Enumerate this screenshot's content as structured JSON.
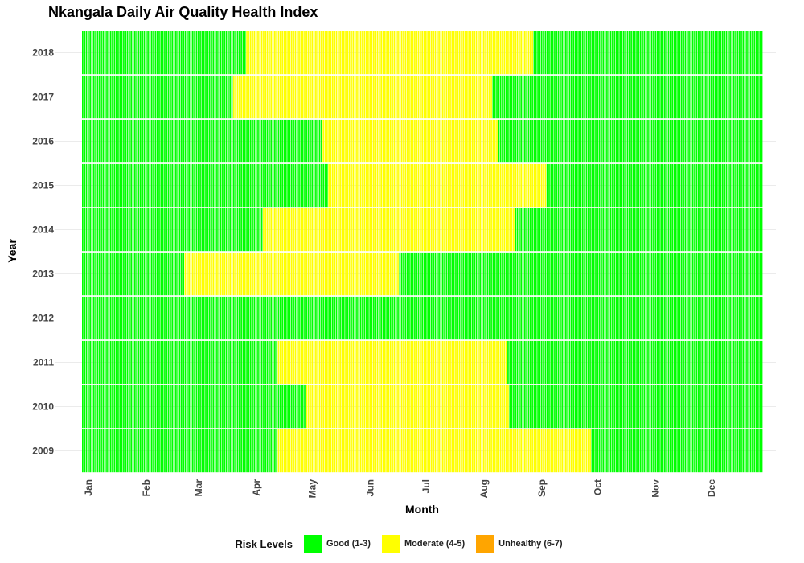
{
  "chart_data": {
    "type": "heatmap",
    "title": "Nkangala Daily Air Quality Health Index",
    "xlabel": "Month",
    "ylabel": "Year",
    "x_ticks": [
      "Jan",
      "Feb",
      "Mar",
      "Apr",
      "May",
      "Jun",
      "Jul",
      "Aug",
      "Sep",
      "Oct",
      "Nov",
      "Dec"
    ],
    "years": [
      2009,
      2010,
      2011,
      2012,
      2013,
      2014,
      2015,
      2016,
      2017,
      2018
    ],
    "day_range": [
      1,
      365
    ],
    "categories": [
      {
        "key": "good",
        "label": "Good (1-3)",
        "color": "#00ff00"
      },
      {
        "key": "moderate",
        "label": "Moderate (4-5)",
        "color": "#ffff00"
      },
      {
        "key": "unhealthy",
        "label": "Unhealthy (6-7)",
        "color": "#ffa500"
      }
    ],
    "legend_title": "Risk Levels",
    "legend_position": "bottom",
    "grid": true,
    "daily_levels": {
      "2018": "GGGGGGGGGGGGGGGGGGGGGGGGGGGGGGGGGGGGGGGGGGGGGGGGGGGGGGGGGGGGGGGGGGGGGGGGGGGGGGGGGGGGGGGGMMMMMMMMMMMMMMMMMMMMMMMMMMMMMMMMMMMMMMMMMMMMMMMMMMMMMMMMMMMMMMMMMMMMMMMMMMMMMMMMMMMMMMMMMMMMMMMMMMMMMMMMMMMMMMMMMMMMMMMMMMMMMMMMMMMMMMMMMMMMMMMMMMMMMMMMMMGGGGGGGGGGGGGGGGGGGGGGGGGGGGGGGGGGGGGGGGGGGGGGGGGGGGGGGGGGGGGGGGGGGGGGGGGGGGGGGGGGGGGGGGGGGGGGGGGGGGGGGGGGGGG",
      "2017": "GGGGGGGGGGGGGGGGGGGGGGGGGGGGGGGGGGGGGGGGGGGGGGGGGGGGGGGGGGGGGGGGGGGGGGGGGGGGGGGGGMMMMMMMMMMMMMMMMMMMMMMMMMMMMMMMMMMMMMMMMMMMMMMMMMMMMMMMMMMMMMMMMMMMMMMMMMMMMMMMMMMMMMMMMMMMMMMMMMMMMMMMMMMMMMMMMMMMMMMMMMMMMMMMMMMMMMMMMMMMGGGGGGGGGGGGGGGGGGGGGGGGGGGGGGGGGGGGGGGGGGGGGGGGGGGGGGGGGGGGGGGGGGGGGGGGGGGGGGGGGGGGGGGGGGGGGGGGGGGGGGGGGGGGGGGGGGGGGGGGGGGGGGG",
      "2016": "GGGGGGGGGGGGGGGGGGGGGGGGGGGGGGGGGGGGGGGGGGGGGGGGGGGGGGGGGGGGGGGGGGGGGGGGGGGGGGGGGGGGGGGGGGGGGGGGGGGGGGGGGGGGGGGGGGGGGGGGGGGGGGGGGMMMMMMMMMMMMMMMMMMMMMMMMMMMMMMMMMMMMMMMMMMMMMMMMMMMMMMMMMMMMMMMMMMMMMMMMMMMMMMMMMMMMMMMMMMMMMMGGGGGGGGGGGGGGGGGGGGGGGGGGGGGGGGGGGGGGGGGGGGGGGGGGGGGGGGGGGGGGGGGGGGGGGGGGGGGGGGGGGGGGGGGGGGGGGGGGGGGGGGGGGGGGGGGGGGGG",
      "2015": "GGGGGGGGGGGGGGGGGGGGGGGGGGGGGGGGGGGGGGGGGGGGGGGGGGGGGGGGGGGGGGGGGGGGGGGGGGGGGGGGGGGGGGGGGGGGGGGGGGGGGGGGGGGGGGGGGGGGGGGGGGGGGGGGGGGGMMMMMMMMMMMMMMMMMMMMMMMMMMMMMMMMMMMMMMMMMMMMMMMMMMMMMMMMMMMMMMMMMMMMMMMMMMMMMMMMMMMMMMMMMMMMMMMMMMMMMMMMMMMMMMMMMMMMMGGGGGGGGGGGGGGGGGGGGGGGGGGGGGGGGGGGGGGGGGGGGGGGGGGGGGGGGGGGGGGGGGGGGGGGGGGGGGGGGGGGGGGGGGGGGGG",
      "2014": "GGGGGGGGGGGGGGGGGGGGGGGGGGGGGGGGGGGGGGGGGGGGGGGGGGGGGGGGGGGGGGGGGGGGGGGGGGGGGGGGGGGGGGGGGGGGGGGGGMMMMMMMMMMMMMMMMMMMMMMMMMMMMMMMMMMMMMMMMMMMMMMMMMMMMMMMMMMMMMMMMMMMMMMMMMMMMMMMMMMMMMMMMMMMMMMMMMMMMMMMMMMMMMMMMMMMMMMMMMMMMMMMMMMMMMMMGGGGGGGGGGGGGGGGGGGGGGGGGGGGGGGGGGGGGGGGGGGGGGGGGGGGGGGGGGGGGGGGGGGGGGGGGGGGGGGGGGGGGGGGGGGGGGGGGGGGGGGGGGGGGGGGGGGGGGGGGGGGGGGGGGG",
      "2013": "GGGGGGGGGGGGGGGGGGGGGGGGGGGGGGGGGGGGGGGGGGGGGGGGGGGGGGGMMMMMMMMMMMMMMMMMMMMMMMMMMMMMMMMMMMMMMMMMMMMMMMMMMMMMMMMMMMMMMMMMMMMMMMMMMMMMMMMMMMMMMMMMMMMMMMMMMMMMMMMMMMMMMMMMMMGGGGGGGGGGGGGGGGGGGGGGGGGGGGGGGGGGGGGGGGGGGGGGGGGGGGGGGGGGGGGGGGGGGGGGGGGGGGGGGGGGGGGGGGGGGGGGGGGGGGGGGGGGGGGGGGGGGGGGGGGGGGGGGGGGGGGGGGGGGGGGGGGGGGGGGGGGGGGGGGGGGGGGGGGGGGGGGGGGGGGGGGGGGGGG",
      "2012": "GGGGGGGGGGGGGGGGGGGGGGGGGGGGGGGGGGGGGGGGGGGGGGGGGGGGGGGGGGGGGGGGGGGGGGGGGGGGGGGGGGGGGGGGGGGGGGGGGGGGGGGGGGGGGGGGGGGGGGGGGGGGGGGGGGGGGGGGGGGGGGGGGGGGGGGGGGGGGGGGGGGGGGGGGGGGGGGGGGGGGGGGGGGGGGGGGGGGGGGGGGGGGGGGGGGGGGGGGGGGGGGGGGGGGGGGGGGGGGGGGGGGGGGGGGGGGGGGGGGGGGGGGGGGGGGGGGGGGGGGGGGGGGGGGGGGGGGGGGGGGGGGGGGGGGGGGGGGGGGGGGGGGGGGGGGGGGGGGGGGGGGGGGGGGGGGGGGGGGGG",
      "2011": "GGGGGGGGGGGGGGGGGGGGGGGGGGGGGGGGGGGGGGGGGGGGGGGGGGGGGGGGGGGGGGGGGGGGGGGGGGGGGGGGGGGGGGGGGGGGGGGGGGGGGGGGGMMMMMMMMMMMMMMMMMMMMMMMMMMMMMMMMMMMMMMMMMMMMMMMMMMMMMMMMMMMMMMMMMMMMMMMMMMMMMMMMMMMMMMMMMMMMMMMMMMMMMMMMMMMMMMMMMMMMMMMMMMMGGGGGGGGGGGGGGGGGGGGGGGGGGGGGGGGGGGGGGGGGGGGGGGGGGGGGGGGGGGGGGGGGGGGGGGGGGGGGGGGGGGGGGGGGGGGGGGGGGGGGGGGGGGGGGGGGGGGGGGGGGGGGGGGGGGG",
      "2010": "GGGGGGGGGGGGGGGGGGGGGGGGGGGGGGGGGGGGGGGGGGGGGGGGGGGGGGGGGGGGGGGGGGGGGGGGGGGGGGGGGGGGGGGGGGGGGGGGGGGGGGGGGGGGGGGGGGGGGGGGMMMMMMMMMMMMMMMMMMMMMMMMMMMMMMMMMMMMMMMMMMMMMMMMMMMMMMMMMMMMMMMMMMMMMMMMMMMMMMMMMMMMMMMMMMMMMMMMMMMMMMMMMMMMMGGGGGGGGGGGGGGGGGGGGGGGGGGGGGGGGGGGGGGGGGGGGGGGGGGGGGGGGGGGGGGGGGGGGGGGGGGGGGGGGGGGGGGGGGGGGGGGGGGGGGGGGGGGGGGGGGG",
      "2009": "GGGGGGGGGGGGGGGGGGGGGGGGGGGGGGGGGGGGGGGGGGGGGGGGGGGGGGGGGGGGGGGGGGGGGGGGGGGGGGGGGGGGGGGGGGGGGGGGGGGGGGGGGMMMMMMMMMMMMMMMMMMMMMMMMMMMMMMMMMMMMMMMMMMMMMMMMMMMMMMMMMMMMMMMMMMMMMMMMMMMMMMMMMMMMMMMMMMMMMMMMMMMMMMMMMMMMMMMMMMMMMMMMMMMMMMMMMMMMMMMMMMMMMMMMMMMMMMMMMMMMMMMMMMMMMMMMGGGGGGGGGGGGGGGGGGGGGGGGGGGGGGGGGGGGGGGGGGGGGGGGGGGGGGGGGGGGGGGGGGGGGGGGGGGGGGGGGGGGGGG"
    }
  }
}
